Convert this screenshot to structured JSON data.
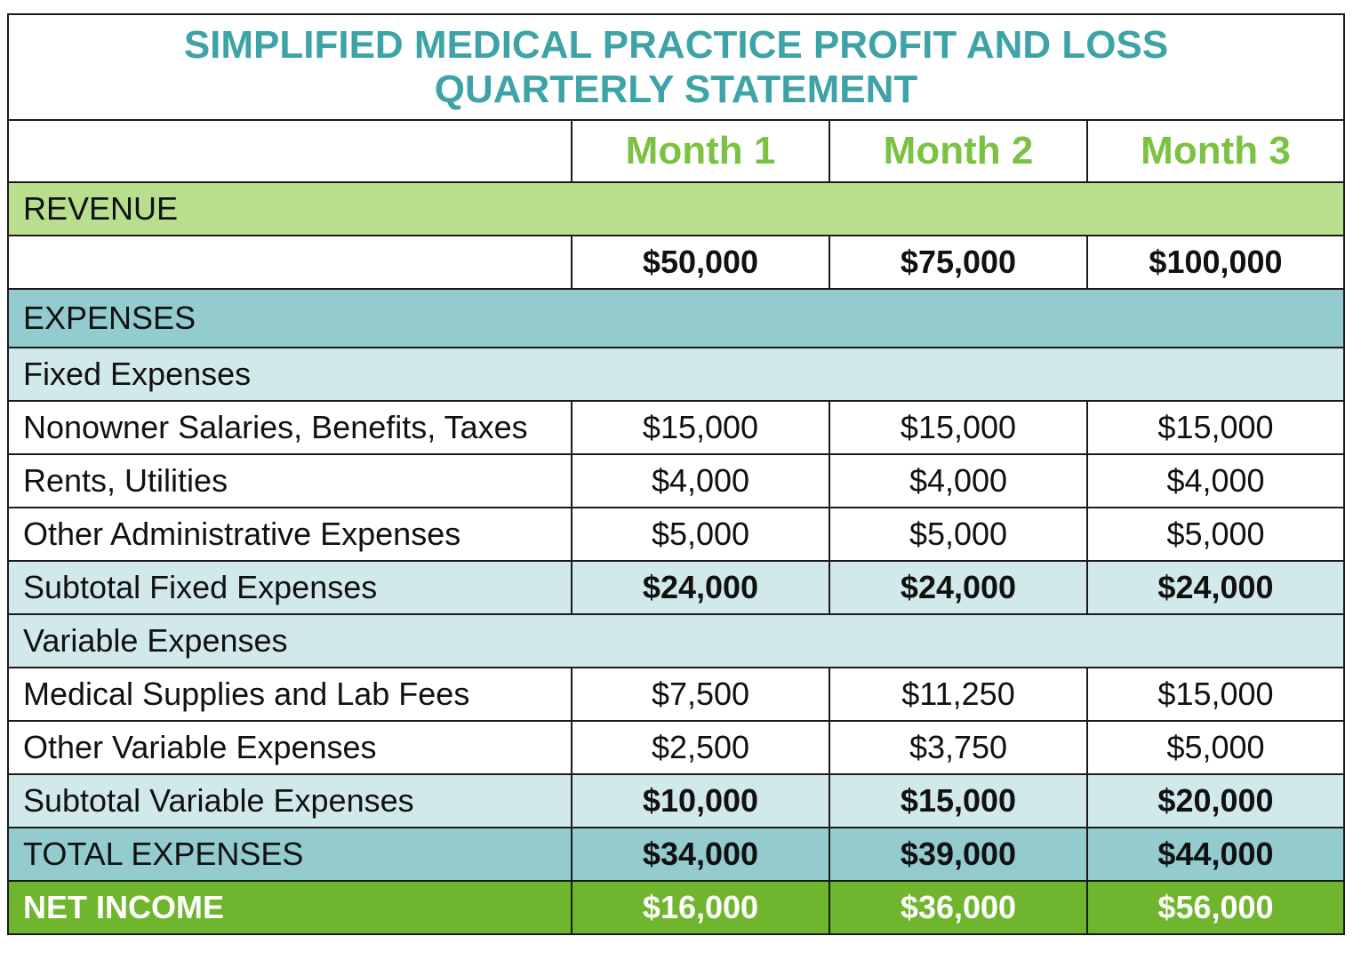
{
  "title": {
    "line1": "SIMPLIFIED MEDICAL PRACTICE PROFIT AND LOSS",
    "line2": "QUARTERLY STATEMENT"
  },
  "columns": [
    "Month 1",
    "Month 2",
    "Month 3"
  ],
  "revenue": {
    "label": "REVENUE",
    "values": [
      "$50,000",
      "$75,000",
      "$100,000"
    ]
  },
  "expenses_label": "EXPENSES",
  "fixed": {
    "label": "Fixed Expenses",
    "rows": [
      {
        "label": "Nonowner Salaries, Benefits, Taxes",
        "values": [
          "$15,000",
          "$15,000",
          "$15,000"
        ]
      },
      {
        "label": "Rents, Utilities",
        "values": [
          "$4,000",
          "$4,000",
          "$4,000"
        ]
      },
      {
        "label": "Other Administrative Expenses",
        "values": [
          "$5,000",
          "$5,000",
          "$5,000"
        ]
      }
    ],
    "subtotal": {
      "label": "Subtotal Fixed Expenses",
      "values": [
        "$24,000",
        "$24,000",
        "$24,000"
      ]
    }
  },
  "variable": {
    "label": "Variable Expenses",
    "rows": [
      {
        "label": "Medical Supplies and Lab Fees",
        "values": [
          "$7,500",
          "$11,250",
          "$15,000"
        ]
      },
      {
        "label": "Other Variable Expenses",
        "values": [
          "$2,500",
          "$3,750",
          "$5,000"
        ]
      }
    ],
    "subtotal": {
      "label": "Subtotal Variable Expenses",
      "values": [
        "$10,000",
        "$15,000",
        "$20,000"
      ]
    }
  },
  "total_expenses": {
    "label": "TOTAL EXPENSES",
    "values": [
      "$34,000",
      "$39,000",
      "$44,000"
    ]
  },
  "net_income": {
    "label": "NET INCOME",
    "values": [
      "$16,000",
      "$36,000",
      "$56,000"
    ]
  },
  "colors": {
    "title": "#3ea3a6",
    "month_header": "#7cc242",
    "revenue_band": "#b9df8e",
    "expenses_band": "#93cbcf",
    "light_band": "#d2e9eb",
    "net_income_band": "#6fb52e"
  }
}
